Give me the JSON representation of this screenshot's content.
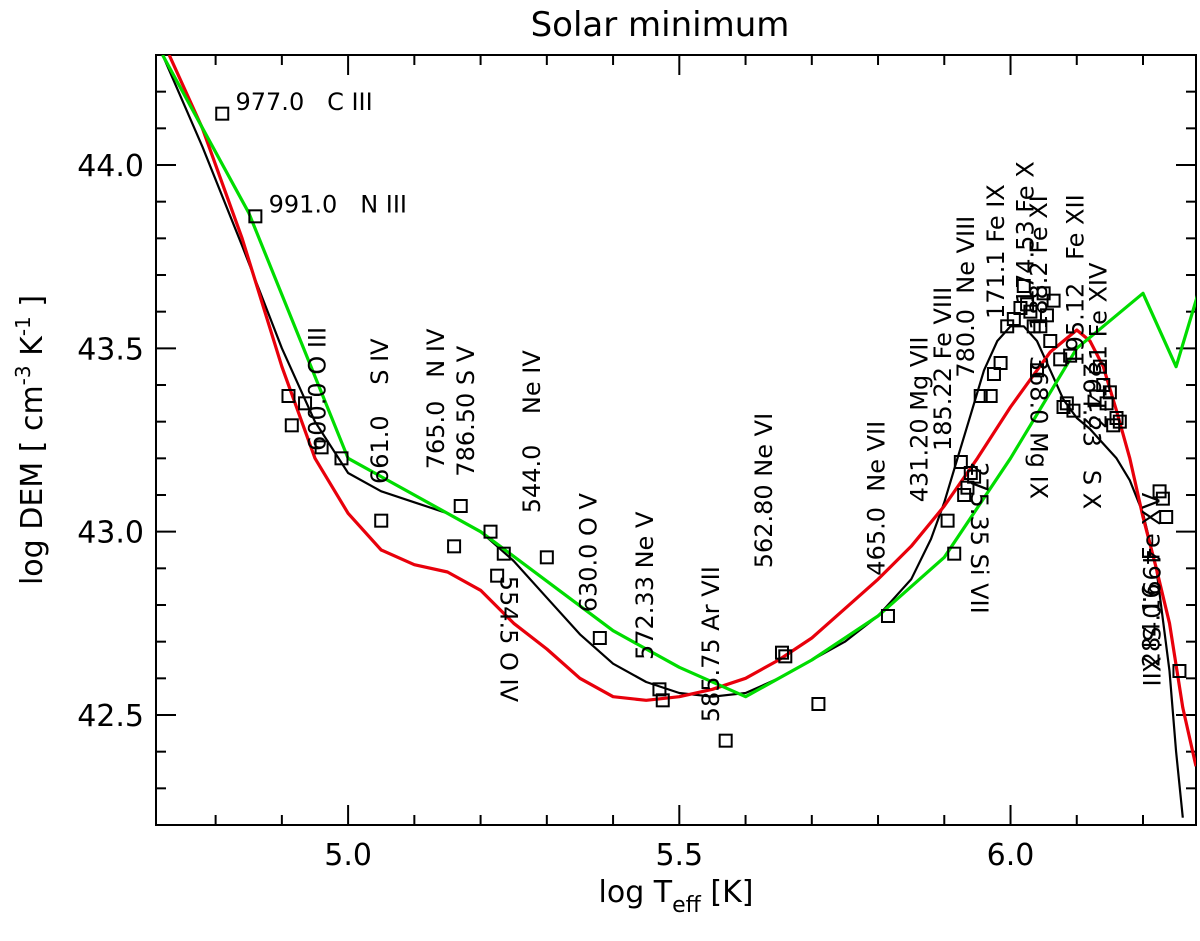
{
  "chart_data": {
    "type": "line",
    "title": "Solar minimum",
    "xlabel": "log T_eff [K]",
    "xlabel_parts": {
      "main": "log T",
      "sub": "eff",
      "tail": " [K]"
    },
    "ylabel": "log DEM [ cm^-3 K^-1 ]",
    "ylabel_parts": {
      "a": "log DEM [ cm",
      "sup1": "-3",
      "b": " K",
      "sup2": "-1",
      "c": " ]"
    },
    "xlim": [
      4.71,
      6.28
    ],
    "ylim": [
      42.2,
      44.3
    ],
    "xticks": [
      5.0,
      5.5,
      6.0
    ],
    "xtick_labels": [
      "5.0",
      "5.5",
      "6.0"
    ],
    "yticks": [
      42.5,
      43.0,
      43.5,
      44.0
    ],
    "ytick_labels": [
      "42.5",
      "43.0",
      "43.5",
      "44.0"
    ],
    "grid": false,
    "series": [
      {
        "color": "#000000",
        "x": [
          4.72,
          4.78,
          4.84,
          4.9,
          4.95,
          5.0,
          5.05,
          5.1,
          5.15,
          5.2,
          5.25,
          5.3,
          5.35,
          5.4,
          5.45,
          5.5,
          5.55,
          5.6,
          5.65,
          5.7,
          5.75,
          5.8,
          5.85,
          5.88,
          5.9,
          5.92,
          5.94,
          5.96,
          5.98,
          6.0,
          6.02,
          6.04,
          6.06,
          6.08,
          6.1,
          6.12,
          6.14,
          6.16,
          6.18,
          6.2,
          6.22,
          6.24,
          6.25,
          6.26
        ],
        "y": [
          44.3,
          44.05,
          43.78,
          43.5,
          43.3,
          43.16,
          43.11,
          43.08,
          43.05,
          43.0,
          42.92,
          42.82,
          42.72,
          42.64,
          42.59,
          42.56,
          42.55,
          42.56,
          42.6,
          42.65,
          42.7,
          42.77,
          42.87,
          42.98,
          43.08,
          43.2,
          43.32,
          43.44,
          43.52,
          43.56,
          43.56,
          43.52,
          43.44,
          43.36,
          43.31,
          43.28,
          43.24,
          43.2,
          43.14,
          43.05,
          42.9,
          42.62,
          42.4,
          42.22
        ]
      },
      {
        "color": "#e8000b",
        "x": [
          4.73,
          4.78,
          4.84,
          4.9,
          4.95,
          5.0,
          5.05,
          5.1,
          5.15,
          5.2,
          5.25,
          5.3,
          5.35,
          5.4,
          5.45,
          5.5,
          5.55,
          5.6,
          5.65,
          5.7,
          5.75,
          5.8,
          5.85,
          5.9,
          5.95,
          6.0,
          6.04,
          6.06,
          6.08,
          6.1,
          6.12,
          6.14,
          6.16,
          6.18,
          6.2,
          6.22,
          6.24,
          6.26,
          6.28
        ],
        "y": [
          44.3,
          44.1,
          43.8,
          43.45,
          43.2,
          43.05,
          42.95,
          42.91,
          42.89,
          42.84,
          42.75,
          42.68,
          42.6,
          42.55,
          42.54,
          42.55,
          42.57,
          42.6,
          42.65,
          42.71,
          42.79,
          42.87,
          42.96,
          43.07,
          43.2,
          43.34,
          43.44,
          43.49,
          43.52,
          43.55,
          43.52,
          43.45,
          43.33,
          43.2,
          43.04,
          42.9,
          42.75,
          42.52,
          42.36
        ]
      },
      {
        "color": "#00dc00",
        "x": [
          4.72,
          4.85,
          5.0,
          5.2,
          5.4,
          5.5,
          5.6,
          5.7,
          5.8,
          5.9,
          6.0,
          6.1,
          6.2,
          6.25,
          6.3
        ],
        "y": [
          44.3,
          43.87,
          43.2,
          43.0,
          42.73,
          42.63,
          42.55,
          42.65,
          42.77,
          42.93,
          43.2,
          43.5,
          43.65,
          43.45,
          43.75
        ]
      }
    ],
    "points": {
      "x": [
        4.81,
        4.86,
        4.91,
        4.915,
        4.935,
        4.96,
        4.99,
        5.05,
        5.16,
        5.17,
        5.215,
        5.225,
        5.235,
        5.3,
        5.38,
        5.47,
        5.475,
        5.57,
        5.655,
        5.66,
        5.71,
        5.815,
        5.905,
        5.915,
        5.925,
        5.93,
        5.935,
        5.94,
        5.945,
        5.955,
        5.97,
        5.975,
        5.985,
        5.995,
        6.005,
        6.015,
        6.02,
        6.025,
        6.03,
        6.035,
        6.04,
        6.045,
        6.05,
        6.055,
        6.06,
        6.065,
        6.075,
        6.08,
        6.085,
        6.09,
        6.095,
        6.135,
        6.14,
        6.145,
        6.15,
        6.155,
        6.16,
        6.165,
        6.225,
        6.23,
        6.235,
        6.255
      ],
      "y": [
        44.14,
        43.86,
        43.37,
        43.29,
        43.35,
        43.23,
        43.2,
        43.03,
        42.96,
        43.07,
        43.0,
        42.88,
        42.94,
        42.93,
        42.71,
        42.57,
        42.54,
        42.43,
        42.67,
        42.66,
        42.53,
        42.77,
        43.03,
        42.94,
        43.19,
        43.1,
        43.12,
        43.16,
        43.15,
        43.37,
        43.37,
        43.43,
        43.46,
        43.56,
        43.58,
        43.61,
        43.67,
        43.62,
        43.6,
        43.56,
        43.44,
        43.56,
        43.65,
        43.59,
        43.52,
        43.63,
        43.47,
        43.34,
        43.35,
        43.48,
        43.33,
        43.45,
        43.4,
        43.35,
        43.38,
        43.29,
        43.31,
        43.3,
        43.11,
        43.09,
        43.04,
        42.62
      ]
    },
    "annotations": [
      {
        "text": "977.0   C III",
        "x": 4.83,
        "y": 44.15,
        "rotate": 0
      },
      {
        "text": "991.0   N III",
        "x": 4.88,
        "y": 43.87,
        "rotate": 0
      },
      {
        "text": "600.0 O III",
        "x": 4.966,
        "y": 43.22,
        "rotate": -90
      },
      {
        "text": "661.0    S IV",
        "x": 5.06,
        "y": 43.13,
        "rotate": -90
      },
      {
        "text": "765.0   N IV",
        "x": 5.145,
        "y": 43.17,
        "rotate": -90
      },
      {
        "text": "786.50 S V",
        "x": 5.19,
        "y": 43.15,
        "rotate": -90
      },
      {
        "text": "544.0    Ne IV",
        "x": 5.29,
        "y": 43.05,
        "rotate": -90
      },
      {
        "text": "554.5 O IV",
        "x": 5.23,
        "y": 42.88,
        "rotate": 90
      },
      {
        "text": "630.0 O V",
        "x": 5.375,
        "y": 42.78,
        "rotate": -90
      },
      {
        "text": "572.33 Ne V",
        "x": 5.46,
        "y": 42.65,
        "rotate": -90
      },
      {
        "text": "585.75 Ar VII",
        "x": 5.56,
        "y": 42.48,
        "rotate": -90
      },
      {
        "text": "562.80 Ne VI",
        "x": 5.64,
        "y": 42.9,
        "rotate": -90
      },
      {
        "text": "465.0  Ne VII",
        "x": 5.81,
        "y": 42.88,
        "rotate": -90
      },
      {
        "text": "431.20 Mg VII",
        "x": 5.875,
        "y": 43.08,
        "rotate": -90
      },
      {
        "text": "185.22 Fe VIII",
        "x": 5.91,
        "y": 43.22,
        "rotate": -90
      },
      {
        "text": "780.0  Ne VIII",
        "x": 5.945,
        "y": 43.42,
        "rotate": -90
      },
      {
        "text": "171.1 Fe IX",
        "x": 5.99,
        "y": 43.58,
        "rotate": -90
      },
      {
        "text": "174.53 Fe X",
        "x": 6.035,
        "y": 43.62,
        "rotate": -90
      },
      {
        "text": "188.2 Fe XI",
        "x": 6.055,
        "y": 43.55,
        "rotate": -90
      },
      {
        "text": "195.12   Fe XII",
        "x": 6.11,
        "y": 43.45,
        "rotate": -90
      },
      {
        "text": "211.31 Fe XIV",
        "x": 6.145,
        "y": 43.28,
        "rotate": -90
      },
      {
        "text": "284.16   Fe XV",
        "x": 6.225,
        "y": 42.63,
        "rotate": -90
      },
      {
        "text": "368.0 Mg IX",
        "x": 6.03,
        "y": 43.48,
        "rotate": 90
      },
      {
        "text": "275.35 Si VII",
        "x": 5.94,
        "y": 43.19,
        "rotate": 90
      },
      {
        "text": "264.23   S X",
        "x": 6.11,
        "y": 43.46,
        "rotate": 90
      },
      {
        "text": "499.0 Si XII",
        "x": 6.2,
        "y": 42.95,
        "rotate": 90
      }
    ]
  }
}
